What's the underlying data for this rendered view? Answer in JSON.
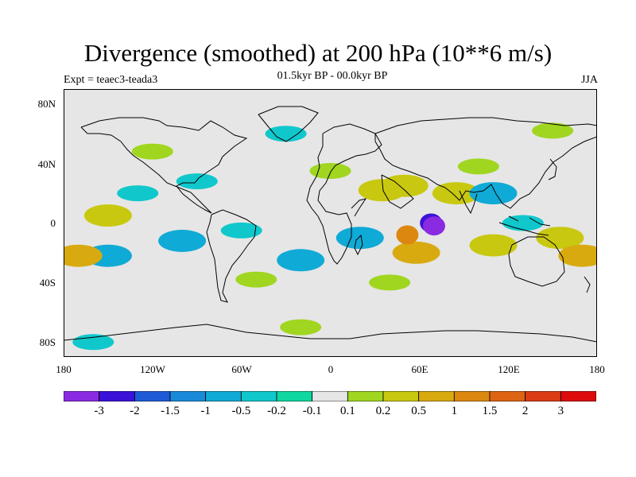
{
  "title": "Divergence (smoothed) at 200 hPa (10**6 m/s)",
  "subtitle": "01.5kyr BP - 00.0kyr BP",
  "left_label": "Expt = teaec3-teada3",
  "right_label": "JJA",
  "map": {
    "projection": "cylindrical equidistant",
    "lat_ticks": [
      "80N",
      "40N",
      "0",
      "40S",
      "80S"
    ],
    "lon_ticks": [
      "180",
      "120W",
      "60W",
      "0",
      "60E",
      "120E",
      "180"
    ]
  },
  "colorbar": {
    "colors": [
      "#8a2be2",
      "#3a12d8",
      "#1f5ad6",
      "#1a8ad8",
      "#10aad6",
      "#10c8cc",
      "#10d7a0",
      "#e6e6e6",
      "#a0d620",
      "#c8c810",
      "#d8aa10",
      "#dc8810",
      "#dc6414",
      "#dc3c14",
      "#dc0c0c"
    ],
    "labels": [
      "-3",
      "-2",
      "-1.5",
      "-1",
      "-0.5",
      "-0.2",
      "-0.1",
      "0.1",
      "0.2",
      "0.5",
      "1",
      "1.5",
      "2",
      "3"
    ]
  },
  "chart_data": {
    "type": "heatmap",
    "title": "Divergence (smoothed) at 200 hPa (10**6 m/s)",
    "subtitle": "01.5kyr BP - 00.0kyr BP",
    "experiment": "Expt = teaec3-teada3",
    "season": "JJA",
    "xlim": [
      -180,
      180
    ],
    "ylim": [
      -90,
      90
    ],
    "xticks": [
      -180,
      -120,
      -60,
      0,
      60,
      120,
      180
    ],
    "xticklabels": [
      "180",
      "120W",
      "60W",
      "0",
      "60E",
      "120E",
      "180"
    ],
    "yticks": [
      80,
      40,
      0,
      -40,
      -80
    ],
    "yticklabels": [
      "80N",
      "40N",
      "0",
      "40S",
      "80S"
    ],
    "contour_levels": [
      -3,
      -2,
      -1.5,
      -1,
      -0.5,
      -0.2,
      -0.1,
      0.1,
      0.2,
      0.5,
      1,
      1.5,
      2,
      3
    ],
    "anomaly_regions": [
      {
        "lon": 68,
        "lat": 0,
        "value": -2.0
      },
      {
        "lon": 70,
        "lat": -2,
        "value": -3.0
      },
      {
        "lon": 52,
        "lat": -8,
        "value": 1.5
      },
      {
        "lon": 58,
        "lat": -20,
        "value": 1.0
      },
      {
        "lon": 35,
        "lat": 22,
        "value": 0.5
      },
      {
        "lon": 50,
        "lat": 25,
        "value": 0.5
      },
      {
        "lon": 85,
        "lat": 20,
        "value": 0.5
      },
      {
        "lon": 110,
        "lat": -15,
        "value": 0.5
      },
      {
        "lon": 155,
        "lat": -10,
        "value": 0.5
      },
      {
        "lon": 170,
        "lat": -22,
        "value": 1.0
      },
      {
        "lon": -150,
        "lat": 5,
        "value": 0.5
      },
      {
        "lon": -170,
        "lat": -22,
        "value": 1.0
      },
      {
        "lon": -150,
        "lat": -22,
        "value": -0.5
      },
      {
        "lon": -100,
        "lat": -12,
        "value": -0.5
      },
      {
        "lon": -60,
        "lat": -5,
        "value": -0.2
      },
      {
        "lon": -20,
        "lat": -25,
        "value": -0.5
      },
      {
        "lon": 20,
        "lat": -10,
        "value": -0.5
      },
      {
        "lon": 110,
        "lat": 20,
        "value": -0.5
      },
      {
        "lon": 130,
        "lat": 0,
        "value": -0.2
      },
      {
        "lon": -130,
        "lat": 20,
        "value": -0.2
      },
      {
        "lon": -50,
        "lat": -38,
        "value": 0.2
      },
      {
        "lon": 40,
        "lat": -40,
        "value": 0.2
      },
      {
        "lon": -90,
        "lat": 28,
        "value": -0.2
      },
      {
        "lon": 0,
        "lat": 35,
        "value": 0.2
      },
      {
        "lon": 100,
        "lat": 38,
        "value": 0.2
      },
      {
        "lon": -120,
        "lat": 48,
        "value": 0.2
      },
      {
        "lon": -30,
        "lat": 60,
        "value": -0.2
      },
      {
        "lon": 150,
        "lat": 62,
        "value": 0.2
      },
      {
        "lon": -20,
        "lat": -70,
        "value": 0.2
      },
      {
        "lon": -160,
        "lat": -80,
        "value": -0.2
      }
    ]
  }
}
